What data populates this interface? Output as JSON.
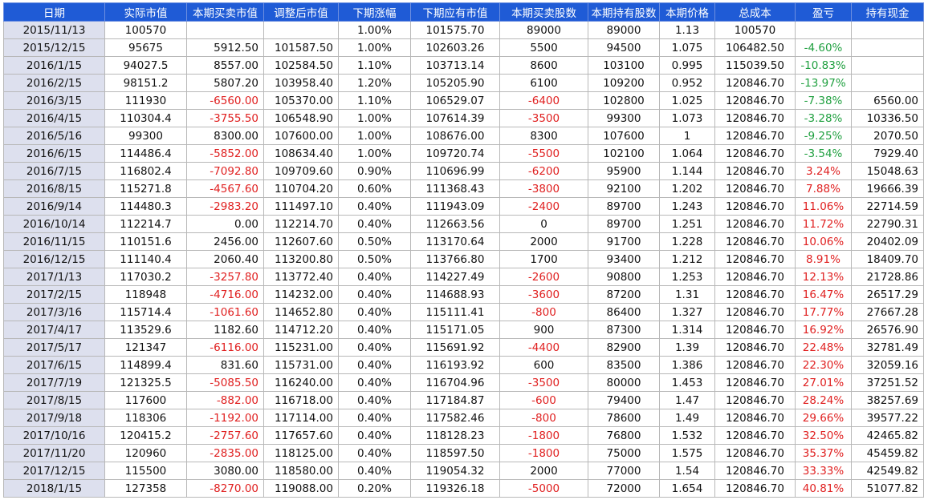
{
  "colors": {
    "header_bg": "#1f5bd6",
    "date_bg": "#dde0ee",
    "negative": "#e02020",
    "loss": "#20a040",
    "gain": "#e02020"
  },
  "table": {
    "headers": [
      "日期",
      "实际市值",
      "本期买卖市值",
      "调整后市值",
      "下期涨幅",
      "下期应有市值",
      "本期买卖股数",
      "本期持有股数",
      "本期价格",
      "总成本",
      "盈亏",
      "持有现金"
    ],
    "rows": [
      [
        "2015/11/13",
        "100570",
        "",
        "",
        "1.00%",
        "101575.70",
        "89000",
        "89000",
        "1.13",
        "100570",
        "",
        ""
      ],
      [
        "2015/12/15",
        "95675",
        "5912.50",
        "101587.50",
        "1.00%",
        "102603.26",
        "5500",
        "94500",
        "1.075",
        "106482.50",
        "-4.60%",
        ""
      ],
      [
        "2016/1/15",
        "94027.5",
        "8557.00",
        "102584.50",
        "1.10%",
        "103713.14",
        "8600",
        "103100",
        "0.995",
        "115039.50",
        "-10.83%",
        ""
      ],
      [
        "2016/2/15",
        "98151.2",
        "5807.20",
        "103958.40",
        "1.20%",
        "105205.90",
        "6100",
        "109200",
        "0.952",
        "120846.70",
        "-13.97%",
        ""
      ],
      [
        "2016/3/15",
        "111930",
        "-6560.00",
        "105370.00",
        "1.10%",
        "106529.07",
        "-6400",
        "102800",
        "1.025",
        "120846.70",
        "-7.38%",
        "6560.00"
      ],
      [
        "2016/4/15",
        "110304.4",
        "-3755.50",
        "106548.90",
        "1.00%",
        "107614.39",
        "-3500",
        "99300",
        "1.073",
        "120846.70",
        "-3.28%",
        "10336.50"
      ],
      [
        "2016/5/16",
        "99300",
        "8300.00",
        "107600.00",
        "1.00%",
        "108676.00",
        "8300",
        "107600",
        "1",
        "120846.70",
        "-9.25%",
        "2070.50"
      ],
      [
        "2016/6/15",
        "114486.4",
        "-5852.00",
        "108634.40",
        "1.00%",
        "109720.74",
        "-5500",
        "102100",
        "1.064",
        "120846.70",
        "-3.54%",
        "7929.40"
      ],
      [
        "2016/7/15",
        "116802.4",
        "-7092.80",
        "109709.60",
        "0.90%",
        "110696.99",
        "-6200",
        "95900",
        "1.144",
        "120846.70",
        "3.24%",
        "15048.63"
      ],
      [
        "2016/8/15",
        "115271.8",
        "-4567.60",
        "110704.20",
        "0.60%",
        "111368.43",
        "-3800",
        "92100",
        "1.202",
        "120846.70",
        "7.88%",
        "19666.39"
      ],
      [
        "2016/9/14",
        "114480.3",
        "-2983.20",
        "111497.10",
        "0.40%",
        "111943.09",
        "-2400",
        "89700",
        "1.243",
        "120846.70",
        "11.06%",
        "22714.59"
      ],
      [
        "2016/10/14",
        "112214.7",
        "0.00",
        "112214.70",
        "0.40%",
        "112663.56",
        "0",
        "89700",
        "1.251",
        "120846.70",
        "11.72%",
        "22790.31"
      ],
      [
        "2016/11/15",
        "110151.6",
        "2456.00",
        "112607.60",
        "0.50%",
        "113170.64",
        "2000",
        "91700",
        "1.228",
        "120846.70",
        "10.06%",
        "20402.09"
      ],
      [
        "2016/12/15",
        "111140.4",
        "2060.40",
        "113200.80",
        "0.50%",
        "113766.80",
        "1700",
        "93400",
        "1.212",
        "120846.70",
        "8.91%",
        "18409.70"
      ],
      [
        "2017/1/13",
        "117030.2",
        "-3257.80",
        "113772.40",
        "0.40%",
        "114227.49",
        "-2600",
        "90800",
        "1.253",
        "120846.70",
        "12.13%",
        "21728.86"
      ],
      [
        "2017/2/15",
        "118948",
        "-4716.00",
        "114232.00",
        "0.40%",
        "114688.93",
        "-3600",
        "87200",
        "1.31",
        "120846.70",
        "16.47%",
        "26517.29"
      ],
      [
        "2017/3/16",
        "115714.4",
        "-1061.60",
        "114652.80",
        "0.40%",
        "115111.41",
        "-800",
        "86400",
        "1.327",
        "120846.70",
        "17.77%",
        "27667.28"
      ],
      [
        "2017/4/17",
        "113529.6",
        "1182.60",
        "114712.20",
        "0.40%",
        "115171.05",
        "900",
        "87300",
        "1.314",
        "120846.70",
        "16.92%",
        "26576.90"
      ],
      [
        "2017/5/17",
        "121347",
        "-6116.00",
        "115231.00",
        "0.40%",
        "115691.92",
        "-4400",
        "82900",
        "1.39",
        "120846.70",
        "22.48%",
        "32781.49"
      ],
      [
        "2017/6/15",
        "114899.4",
        "831.60",
        "115731.00",
        "0.40%",
        "116193.92",
        "600",
        "83500",
        "1.386",
        "120846.70",
        "22.30%",
        "32059.16"
      ],
      [
        "2017/7/19",
        "121325.5",
        "-5085.50",
        "116240.00",
        "0.40%",
        "116704.96",
        "-3500",
        "80000",
        "1.453",
        "120846.70",
        "27.01%",
        "37251.52"
      ],
      [
        "2017/8/15",
        "117600",
        "-882.00",
        "116718.00",
        "0.40%",
        "117184.87",
        "-600",
        "79400",
        "1.47",
        "120846.70",
        "28.24%",
        "38257.69"
      ],
      [
        "2017/9/18",
        "118306",
        "-1192.00",
        "117114.00",
        "0.40%",
        "117582.46",
        "-800",
        "78600",
        "1.49",
        "120846.70",
        "29.66%",
        "39577.22"
      ],
      [
        "2017/10/16",
        "120415.2",
        "-2757.60",
        "117657.60",
        "0.40%",
        "118128.23",
        "-1800",
        "76800",
        "1.532",
        "120846.70",
        "32.50%",
        "42465.82"
      ],
      [
        "2017/11/20",
        "120960",
        "-2835.00",
        "118125.00",
        "0.40%",
        "118597.50",
        "-1800",
        "75000",
        "1.575",
        "120846.70",
        "35.37%",
        "45459.82"
      ],
      [
        "2017/12/15",
        "115500",
        "3080.00",
        "118580.00",
        "0.40%",
        "119054.32",
        "2000",
        "77000",
        "1.54",
        "120846.70",
        "33.33%",
        "42549.82"
      ],
      [
        "2018/1/15",
        "127358",
        "-8270.00",
        "119088.00",
        "0.20%",
        "119326.18",
        "-5000",
        "72000",
        "1.654",
        "120846.70",
        "40.81%",
        "51077.82"
      ]
    ]
  }
}
